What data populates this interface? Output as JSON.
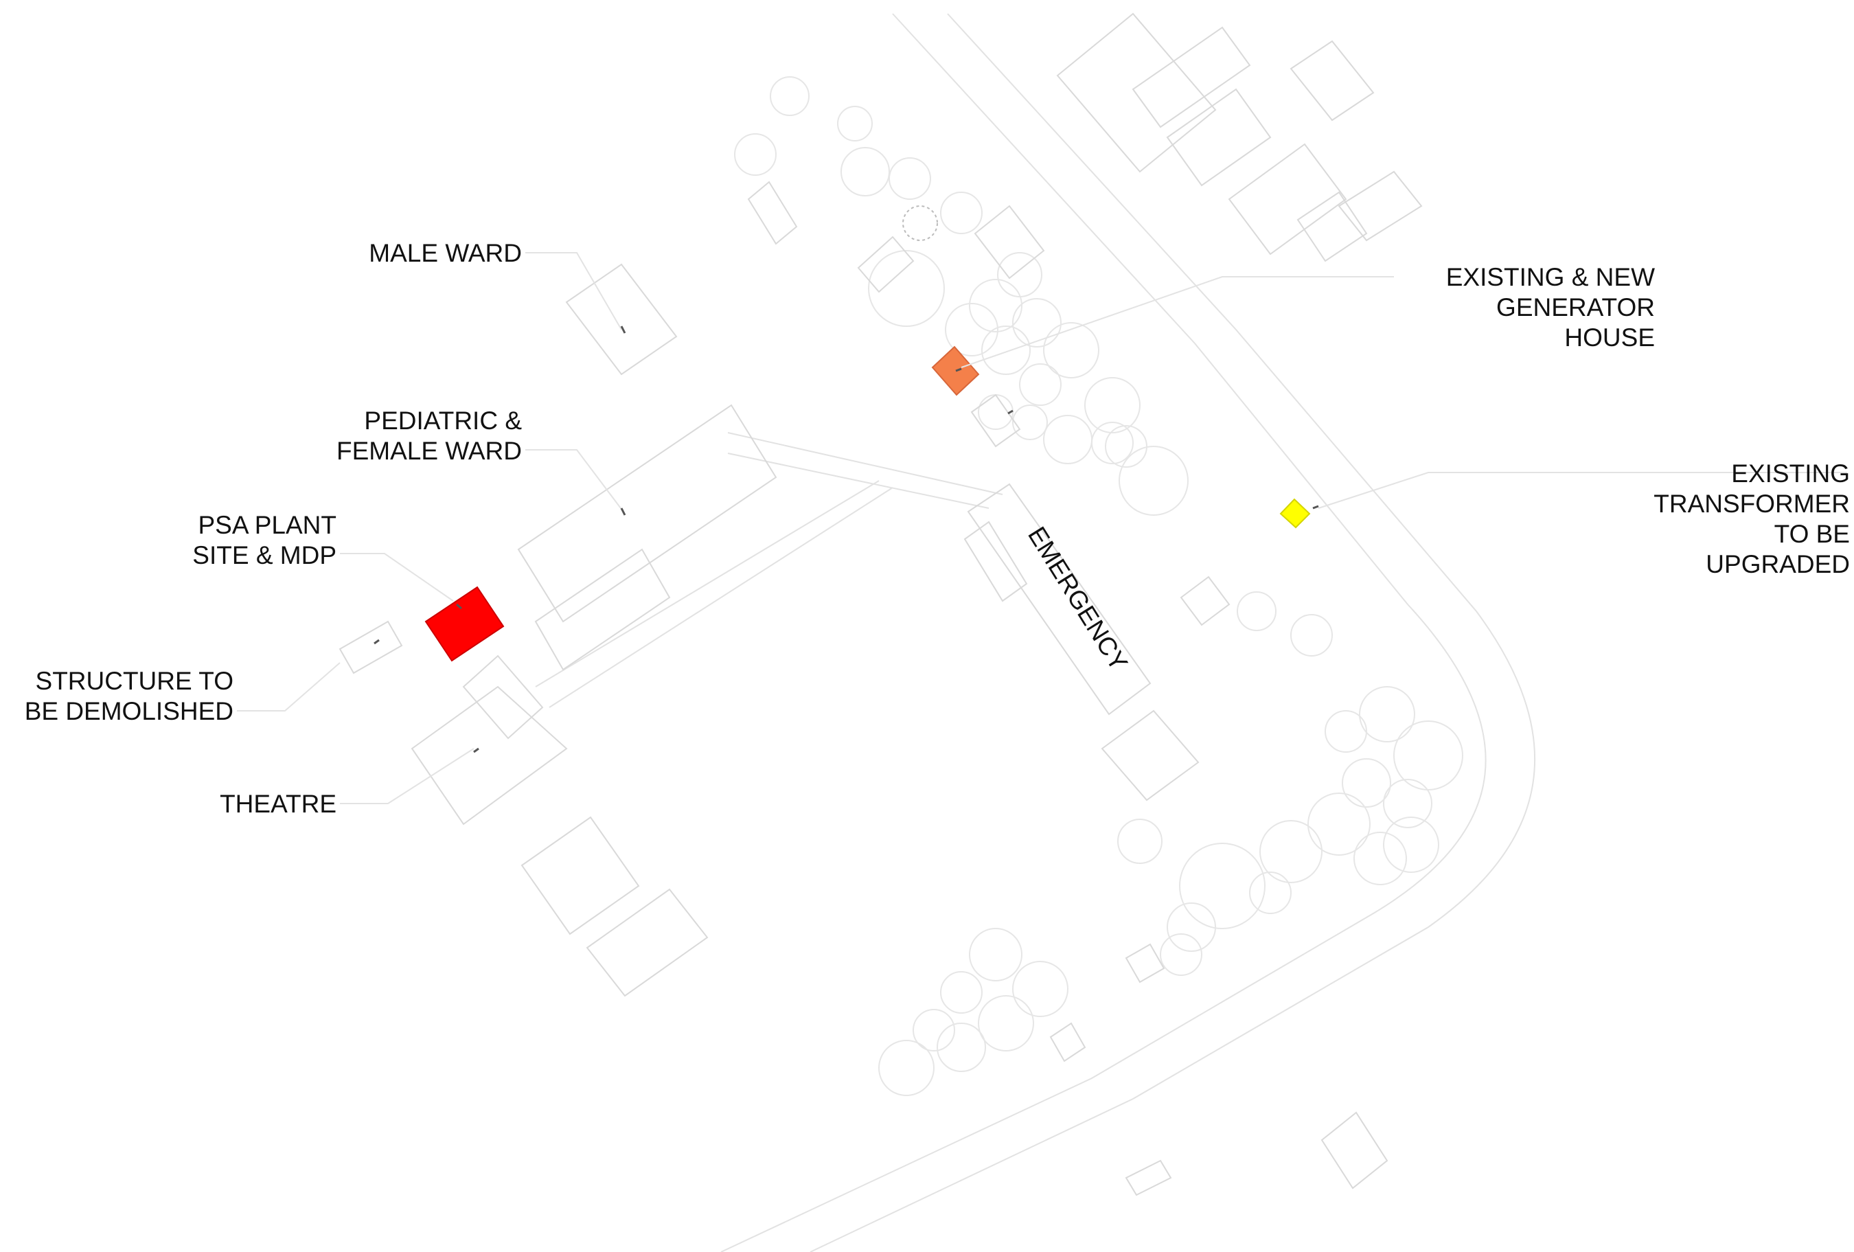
{
  "labels": {
    "male_ward": "MALE WARD",
    "pediatric_1": "PEDIATRIC &",
    "pediatric_2": "FEMALE WARD",
    "psa_1": "PSA PLANT",
    "psa_2": "SITE & MDP",
    "demolish_1": "STRUCTURE TO",
    "demolish_2": "BE DEMOLISHED",
    "theatre": "THEATRE",
    "generator_1": "EXISTING & NEW",
    "generator_2": "GENERATOR",
    "generator_3": "HOUSE",
    "transformer_1": "EXISTING",
    "transformer_2": "TRANSFORMER",
    "transformer_3": "TO BE",
    "transformer_4": "UPGRADED",
    "emergency": "EMERGENCY"
  },
  "highlights": {
    "psa_plant": "#ff0000",
    "generator_house": "#f4804a",
    "transformer": "#ffff00"
  }
}
